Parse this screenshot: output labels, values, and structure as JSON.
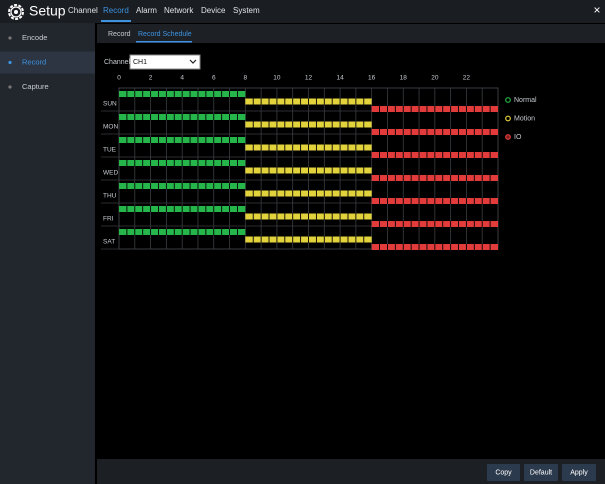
{
  "header": {
    "title": "Setup",
    "tabs": {
      "items": [
        "Channel",
        "Record",
        "Alarm",
        "Network",
        "Device",
        "System"
      ],
      "active": 1
    },
    "close": "×"
  },
  "sidebar": {
    "items": [
      "Encode",
      "Record",
      "Capture"
    ],
    "active": 1
  },
  "subtabs": {
    "items": [
      "Record",
      "Record Schedule"
    ],
    "active": 1
  },
  "channel": {
    "label": "Channel",
    "value": "CH1"
  },
  "schedule": {
    "hours": [
      0,
      2,
      4,
      6,
      8,
      10,
      12,
      14,
      16,
      18,
      20,
      22
    ],
    "xlim": [
      0,
      24
    ],
    "days": [
      {
        "label": "SUN",
        "ranges": [
          [
            0,
            8
          ],
          [
            8,
            16
          ],
          [
            16,
            24
          ]
        ]
      },
      {
        "label": "MON",
        "ranges": [
          [
            0,
            8
          ],
          [
            8,
            16
          ],
          [
            16,
            24
          ]
        ]
      },
      {
        "label": "TUE",
        "ranges": [
          [
            0,
            8
          ],
          [
            8,
            16
          ],
          [
            16,
            24
          ]
        ]
      },
      {
        "label": "WED",
        "ranges": [
          [
            0,
            8
          ],
          [
            8,
            16
          ],
          [
            16,
            24
          ]
        ]
      },
      {
        "label": "THU",
        "ranges": [
          [
            0,
            8
          ],
          [
            8,
            16
          ],
          [
            16,
            24
          ]
        ]
      },
      {
        "label": "FRI",
        "ranges": [
          [
            0,
            8
          ],
          [
            8,
            16
          ],
          [
            16,
            24
          ]
        ]
      },
      {
        "label": "SAT",
        "ranges": [
          [
            0,
            8
          ],
          [
            8,
            16
          ],
          [
            16,
            24
          ]
        ]
      }
    ]
  },
  "legend": [
    {
      "label": "Normal",
      "color": "#25b54a"
    },
    {
      "label": "Motion",
      "color": "#e2d33c"
    },
    {
      "label": "IO",
      "color": "#e23b3b"
    }
  ],
  "buttons": [
    "Copy",
    "Default",
    "Apply"
  ]
}
